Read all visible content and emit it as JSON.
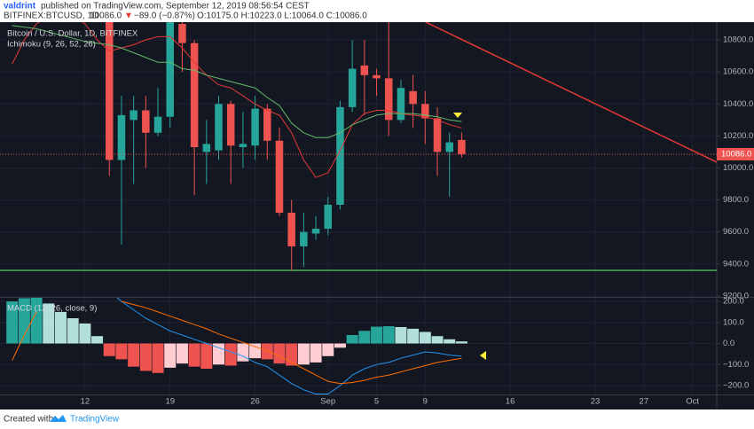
{
  "header": {
    "author": "valdrint",
    "published": "published on TradingView.com, September 12, 2019 08:56:54 CEST",
    "symbol": "BITFINEX:BTCUSD, 1D",
    "last": "10086.0",
    "arrow": "▼",
    "change": "−89.0 (−0.87%)",
    "ohlc": "O:10175.0 H:10223.0 L:10064.0 C:10086.0"
  },
  "footer": {
    "created": "Created with",
    "brand": "TradingView"
  },
  "chart_data": [
    {
      "type": "candlestick",
      "title": "Bitcoin / U.S. Dollar, 1D, BITFINEX",
      "indicator": "Ichimoku (9, 26, 52, 26)",
      "x": [
        "2019-08-06",
        "2019-08-07",
        "2019-08-08",
        "2019-08-09",
        "2019-08-10",
        "2019-08-11",
        "2019-08-12",
        "2019-08-13",
        "2019-08-14",
        "2019-08-15",
        "2019-08-16",
        "2019-08-17",
        "2019-08-18",
        "2019-08-19",
        "2019-08-20",
        "2019-08-21",
        "2019-08-22",
        "2019-08-23",
        "2019-08-24",
        "2019-08-25",
        "2019-08-26",
        "2019-08-27",
        "2019-08-28",
        "2019-08-29",
        "2019-08-30",
        "2019-08-31",
        "2019-09-01",
        "2019-09-02",
        "2019-09-03",
        "2019-09-04",
        "2019-09-05",
        "2019-09-06",
        "2019-09-07",
        "2019-09-08",
        "2019-09-09",
        "2019-09-10",
        "2019-09-11",
        "2019-09-12"
      ],
      "open": [
        null,
        null,
        null,
        null,
        null,
        null,
        null,
        null,
        11000,
        10050,
        10300,
        10360,
        10220,
        10320,
        10900,
        10780,
        10100,
        10110,
        10400,
        10130,
        10140,
        10370,
        10170,
        9720,
        9510,
        9590,
        9620,
        9770,
        10380,
        10640,
        10580,
        10560,
        10300,
        10480,
        10400,
        10310,
        10100,
        10175
      ],
      "high": [
        null,
        null,
        null,
        null,
        null,
        null,
        null,
        null,
        11100,
        10450,
        10450,
        10450,
        10500,
        11000,
        11000,
        10800,
        10300,
        10450,
        10420,
        10350,
        10450,
        10400,
        10250,
        9800,
        9720,
        9700,
        9820,
        10420,
        10800,
        10800,
        10620,
        10950,
        10550,
        10580,
        10480,
        10380,
        10220,
        10223
      ],
      "low": [
        null,
        null,
        null,
        null,
        null,
        null,
        null,
        null,
        9950,
        9520,
        9900,
        10000,
        10200,
        10250,
        10600,
        9830,
        9900,
        10050,
        9900,
        10000,
        10050,
        10050,
        9700,
        9360,
        9380,
        9550,
        9580,
        9740,
        10350,
        10330,
        10450,
        10200,
        10280,
        10250,
        10150,
        9950,
        9820,
        10064
      ],
      "close": [
        null,
        null,
        null,
        null,
        null,
        null,
        null,
        null,
        10050,
        10330,
        10360,
        10220,
        10320,
        10950,
        10780,
        10130,
        10150,
        10400,
        10140,
        10150,
        10370,
        10170,
        9720,
        9510,
        9600,
        9620,
        9770,
        10380,
        10620,
        10580,
        10560,
        10300,
        10500,
        10400,
        10310,
        10100,
        10160,
        10086
      ],
      "up_color": "#26a69a",
      "down_color": "#ef5350",
      "series": [
        {
          "color": "#e53935",
          "values": [
            10650,
            10800,
            10900,
            10950,
            10950,
            10950,
            10900,
            10800,
            10730,
            10750,
            10770,
            10800,
            10820,
            10820,
            10750,
            10660,
            10580,
            10520,
            10500,
            10450,
            10400,
            10360,
            10330,
            10220,
            10050,
            9940,
            9970,
            10110,
            10270,
            10340,
            10360,
            10360,
            10340,
            10330,
            10320,
            10300,
            10270,
            10250
          ]
        },
        {
          "color": "#66bb6a",
          "values": [
            10890,
            10880,
            10870,
            10850,
            10830,
            10810,
            10790,
            10780,
            10770,
            10750,
            10720,
            10690,
            10660,
            10660,
            10620,
            10610,
            10580,
            10560,
            10540,
            10520,
            10500,
            10440,
            10390,
            10280,
            10220,
            10190,
            10190,
            10220,
            10270,
            10300,
            10330,
            10340,
            10340,
            10340,
            10330,
            10320,
            10300,
            10290
          ]
        }
      ],
      "price_tag": {
        "value": 10086,
        "label": "10086.0"
      },
      "xlim": [
        "2019-08-05",
        "2019-10-03"
      ],
      "xticks": [
        {
          "value": "2019-08-12",
          "label": "12"
        },
        {
          "value": "2019-08-19",
          "label": "19"
        },
        {
          "value": "2019-08-26",
          "label": "26"
        },
        {
          "value": "2019-09-01",
          "label": "Sep"
        },
        {
          "value": "2019-09-05",
          "label": "5"
        },
        {
          "value": "2019-09-09",
          "label": "9"
        },
        {
          "value": "2019-09-16",
          "label": "16"
        },
        {
          "value": "2019-09-23",
          "label": "23"
        },
        {
          "value": "2019-09-27",
          "label": "27"
        },
        {
          "value": "2019-10-01",
          "label": "Oct"
        }
      ],
      "ylim": [
        9194,
        10911
      ],
      "yticks": [
        {
          "value": 10800,
          "label": "10800.0"
        },
        {
          "value": 10600,
          "label": "10600.0"
        },
        {
          "value": 10400,
          "label": "10400.0"
        },
        {
          "value": 10200,
          "label": "10200.0"
        },
        {
          "value": 10000,
          "label": "10000.0"
        },
        {
          "value": 9800,
          "label": "9800.0"
        },
        {
          "value": 9600,
          "label": "9600.0"
        },
        {
          "value": 9400,
          "label": "9400.0"
        },
        {
          "value": 9200,
          "label": "9200.0"
        }
      ],
      "grid": true
    },
    {
      "type": "macd",
      "title": "MACD (12, 26, close, 9)",
      "histogram": [
        200,
        215,
        225,
        190,
        150,
        120,
        95,
        35,
        -60,
        -75,
        -110,
        -130,
        -140,
        -115,
        -95,
        -110,
        -120,
        -100,
        -105,
        -85,
        -70,
        -75,
        -95,
        -105,
        -100,
        -90,
        -60,
        -20,
        40,
        60,
        80,
        82,
        78,
        70,
        55,
        35,
        20,
        10
      ],
      "histogram_colors": [
        "#26a69a",
        "#b2dfdb",
        "#ef5350",
        "#ffcdd2"
      ],
      "series": [
        {
          "color": "#2196f3",
          "values": [
            null,
            null,
            null,
            null,
            null,
            null,
            null,
            null,
            250,
            200,
            160,
            120,
            90,
            60,
            40,
            20,
            0,
            -20,
            -40,
            -60,
            -90,
            -110,
            -150,
            -190,
            -220,
            -240,
            -240,
            -200,
            -150,
            -120,
            -100,
            -90,
            -70,
            -55,
            -40,
            -45,
            -55,
            -60
          ]
        },
        {
          "color": "#ff6d00",
          "values": [
            -80,
            40,
            150,
            null,
            null,
            null,
            null,
            null,
            null,
            200,
            185,
            170,
            150,
            130,
            110,
            90,
            70,
            45,
            25,
            5,
            -15,
            -35,
            -60,
            -90,
            -120,
            -150,
            -180,
            -190,
            -185,
            -175,
            -160,
            -150,
            -135,
            -120,
            -105,
            -90,
            -80,
            -70
          ]
        }
      ],
      "ylim": [
        -242,
        217
      ],
      "yticks": [
        {
          "value": 200,
          "label": "200.0"
        },
        {
          "value": 100,
          "label": "100.0"
        },
        {
          "value": 0,
          "label": "0.0"
        },
        {
          "value": -100,
          "label": "−100.0"
        },
        {
          "value": -200,
          "label": "−200.0"
        }
      ],
      "grid": true
    }
  ]
}
